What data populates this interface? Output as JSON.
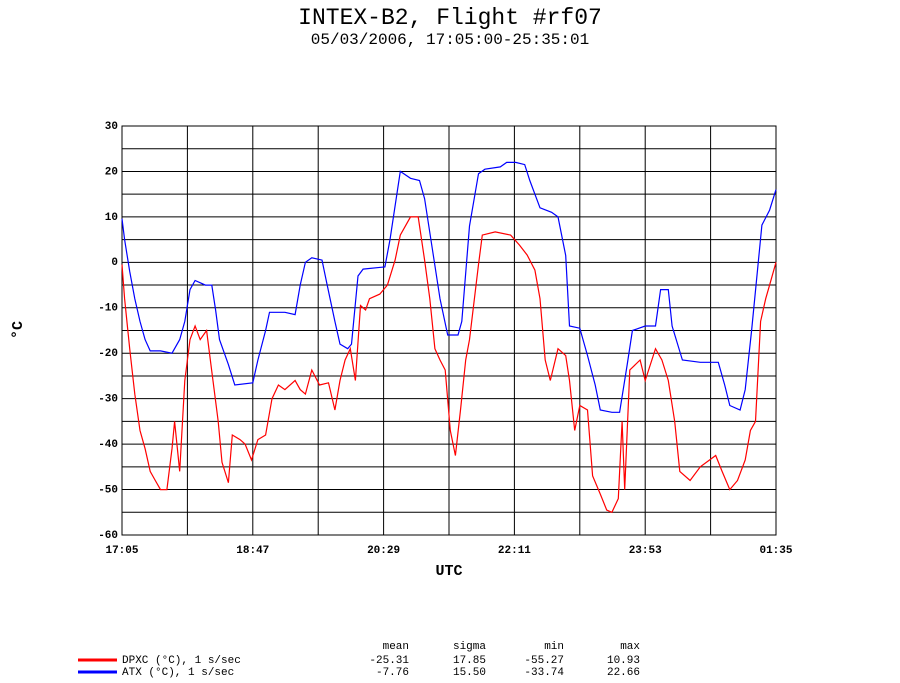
{
  "chart_data": {
    "type": "line",
    "title": "INTEX-B2, Flight #rf07",
    "subtitle": "05/03/2006, 17:05:00-25:35:01",
    "xlabel": "UTC",
    "ylabel": "°C",
    "xlim": [
      0,
      510
    ],
    "xticks": [
      {
        "value": 0,
        "label": "17:05"
      },
      {
        "value": 102,
        "label": "18:47"
      },
      {
        "value": 204,
        "label": "20:29"
      },
      {
        "value": 306,
        "label": "22:11"
      },
      {
        "value": 408,
        "label": "23:53"
      },
      {
        "value": 510,
        "label": "01:35"
      }
    ],
    "ylim": [
      -60,
      30
    ],
    "yticks": [
      -60,
      -50,
      -40,
      -30,
      -20,
      -10,
      0,
      10,
      20,
      30
    ],
    "grid": true,
    "grid_subdivisions": 2,
    "stat_headers": [
      "mean",
      "sigma",
      "min",
      "max"
    ],
    "series": [
      {
        "name": "DPXC (°C), 1 s/sec",
        "color": "#ff0000",
        "stats": [
          "-25.31",
          "17.85",
          "-55.27",
          "10.93"
        ],
        "x": [
          0,
          2,
          6,
          10,
          14,
          18,
          22,
          26,
          30,
          35,
          39,
          41,
          45,
          49,
          53,
          57,
          61,
          66,
          70,
          75,
          78,
          83,
          86,
          92,
          96,
          101,
          106,
          112,
          117,
          122,
          127,
          135,
          139,
          143,
          148,
          154,
          161,
          166,
          170,
          174,
          178,
          182,
          186,
          190,
          193,
          201,
          207,
          213,
          217,
          225,
          231,
          236,
          240,
          244,
          248,
          252,
          256,
          260,
          264,
          268,
          271,
          278,
          281,
          291,
          303,
          310,
          316,
          322,
          326,
          330,
          334,
          340,
          346,
          349,
          353,
          357,
          363,
          367,
          373,
          378,
          382,
          387,
          390,
          392,
          396,
          404,
          408,
          416,
          421,
          426,
          431,
          435,
          443,
          451,
          463,
          468,
          474,
          480,
          486,
          490,
          494,
          498,
          502,
          505,
          510
        ],
        "values": [
          -0.5,
          -8,
          -19,
          -29,
          -37,
          -41,
          -46,
          -48,
          -50,
          -50,
          -41,
          -35,
          -46,
          -26,
          -17,
          -14,
          -17,
          -15,
          -24,
          -35,
          -44,
          -48.5,
          -38,
          -39,
          -40,
          -43.5,
          -39,
          -38,
          -30,
          -27,
          -28,
          -26,
          -28,
          -29,
          -23.7,
          -27,
          -26.5,
          -32.5,
          -26,
          -21.5,
          -19,
          -26,
          -9.5,
          -10.5,
          -8,
          -7,
          -5,
          0.5,
          6,
          10,
          10,
          0.5,
          -8,
          -19,
          -21.5,
          -23.7,
          -37,
          -42.5,
          -32.5,
          -21.5,
          -17,
          -0.5,
          6,
          6.7,
          6,
          3.8,
          1.6,
          -1.7,
          -8,
          -21.5,
          -26,
          -19,
          -20.5,
          -26,
          -37,
          -31.5,
          -32.5,
          -47,
          -51,
          -54.5,
          -55,
          -52,
          -35,
          -50,
          -23.7,
          -21.5,
          -26,
          -19,
          -21.5,
          -26,
          -35,
          -46,
          -48,
          -45,
          -42.5,
          -46,
          -50,
          -48,
          -43.5,
          -37,
          -35,
          -13,
          -8,
          -5,
          0
        ]
      },
      {
        "name": "ATX (°C), 1 s/sec",
        "color": "#0000ff",
        "stats": [
          "-7.76",
          "15.50",
          "-33.74",
          "22.66"
        ],
        "x": [
          0,
          2,
          6,
          10,
          14,
          18,
          22,
          30,
          39,
          45,
          49,
          53,
          57,
          65,
          70,
          73,
          76,
          83,
          88,
          102,
          106,
          112,
          115,
          127,
          135,
          139,
          143,
          148,
          156,
          160,
          166,
          170,
          176,
          179,
          184,
          188,
          205,
          209,
          217,
          225,
          232,
          236,
          242,
          248,
          254,
          262,
          265,
          271,
          278,
          283,
          295,
          300,
          307,
          314,
          318,
          326,
          335,
          340,
          346,
          349,
          357,
          363,
          369,
          373,
          382,
          388,
          394,
          398,
          408,
          416,
          420,
          426,
          429,
          437,
          451,
          465,
          470,
          474,
          482,
          486,
          491,
          499,
          505,
          510
        ],
        "values": [
          9.6,
          5,
          -2,
          -8,
          -13,
          -17,
          -19.5,
          -19.5,
          -20,
          -17,
          -13,
          -6,
          -4,
          -5,
          -5,
          -10.5,
          -17,
          -22.5,
          -27,
          -26.5,
          -21.5,
          -15,
          -11,
          -11,
          -11.5,
          -5,
          0,
          1,
          0.5,
          -5,
          -13,
          -18,
          -19,
          -18,
          -3,
          -1.5,
          -1,
          5,
          20,
          18.5,
          18,
          14,
          3,
          -8,
          -16,
          -16,
          -13,
          8,
          19.5,
          20.5,
          21,
          22,
          22,
          21.5,
          18,
          12,
          11,
          10,
          1.5,
          -14,
          -14.5,
          -20.5,
          -27,
          -32.5,
          -33,
          -33,
          -22.5,
          -15,
          -14,
          -14,
          -6,
          -6,
          -14,
          -21.5,
          -22,
          -22,
          -27,
          -31.5,
          -32.5,
          -28,
          -15,
          8.2,
          11.5,
          16
        ]
      }
    ]
  }
}
